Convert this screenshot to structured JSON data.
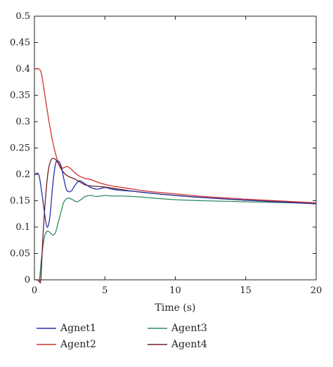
{
  "chart_data": {
    "type": "line",
    "title": "",
    "xlabel": "Time (s)",
    "ylabel": "",
    "xlim": [
      0,
      20
    ],
    "ylim": [
      0,
      0.5
    ],
    "xticks": [
      "0",
      "5",
      "10",
      "15",
      "20"
    ],
    "yticks": [
      "0",
      "0.05",
      "0.1",
      "0.15",
      "0.2",
      "0.25",
      "0.3",
      "0.35",
      "0.4",
      "0.45",
      "0.5"
    ],
    "grid": false,
    "legend_placement": "bottom",
    "series": [
      {
        "name": "Agnet1",
        "color": "#2431a8",
        "x": [
          0,
          0.3,
          0.5,
          0.7,
          0.9,
          1.1,
          1.3,
          1.5,
          1.7,
          1.9,
          2.1,
          2.3,
          2.6,
          2.9,
          3.2,
          3.6,
          4.0,
          4.5,
          5.0,
          5.5,
          6.0,
          7,
          8,
          10,
          12,
          15,
          20
        ],
        "y": [
          0.2,
          0.2,
          0.17,
          0.13,
          0.1,
          0.12,
          0.18,
          0.22,
          0.225,
          0.215,
          0.19,
          0.17,
          0.168,
          0.18,
          0.188,
          0.182,
          0.175,
          0.172,
          0.175,
          0.172,
          0.17,
          0.168,
          0.165,
          0.16,
          0.156,
          0.151,
          0.144
        ]
      },
      {
        "name": "Agent2",
        "color": "#d03030",
        "x": [
          0,
          0.3,
          0.5,
          0.8,
          1.1,
          1.4,
          1.7,
          2.0,
          2.3,
          2.6,
          3.0,
          3.5,
          4.0,
          4.5,
          5.0,
          5.5,
          6,
          7,
          8,
          10,
          12,
          15,
          20
        ],
        "y": [
          0.4,
          0.4,
          0.39,
          0.34,
          0.29,
          0.25,
          0.222,
          0.212,
          0.215,
          0.21,
          0.2,
          0.193,
          0.19,
          0.185,
          0.181,
          0.178,
          0.176,
          0.172,
          0.168,
          0.163,
          0.158,
          0.153,
          0.146
        ]
      },
      {
        "name": "Agent3",
        "color": "#2e8a5e",
        "x": [
          0,
          0.2,
          0.35,
          0.5,
          0.7,
          0.9,
          1.1,
          1.3,
          1.5,
          1.7,
          1.9,
          2.1,
          2.4,
          2.7,
          3.0,
          3.3,
          3.6,
          4.0,
          4.4,
          5.0,
          5.5,
          6,
          7,
          8,
          10,
          12,
          15,
          20
        ],
        "y": [
          0,
          0,
          0,
          0.04,
          0.08,
          0.092,
          0.09,
          0.085,
          0.09,
          0.11,
          0.13,
          0.148,
          0.155,
          0.152,
          0.148,
          0.152,
          0.158,
          0.16,
          0.158,
          0.16,
          0.159,
          0.159,
          0.158,
          0.156,
          0.152,
          0.15,
          0.148,
          0.145
        ]
      },
      {
        "name": "Agent4",
        "color": "#6e1f24",
        "x": [
          0,
          0.3,
          0.45,
          0.6,
          0.8,
          1.0,
          1.2,
          1.4,
          1.6,
          1.9,
          2.2,
          2.5,
          2.8,
          3.2,
          3.6,
          4.0,
          4.5,
          5.0,
          5.5,
          6,
          7,
          8,
          10,
          12,
          15,
          20
        ],
        "y": [
          0,
          0,
          0,
          0.08,
          0.16,
          0.21,
          0.228,
          0.23,
          0.225,
          0.21,
          0.2,
          0.195,
          0.192,
          0.186,
          0.18,
          0.178,
          0.177,
          0.176,
          0.174,
          0.172,
          0.168,
          0.165,
          0.16,
          0.156,
          0.151,
          0.145
        ]
      }
    ]
  }
}
